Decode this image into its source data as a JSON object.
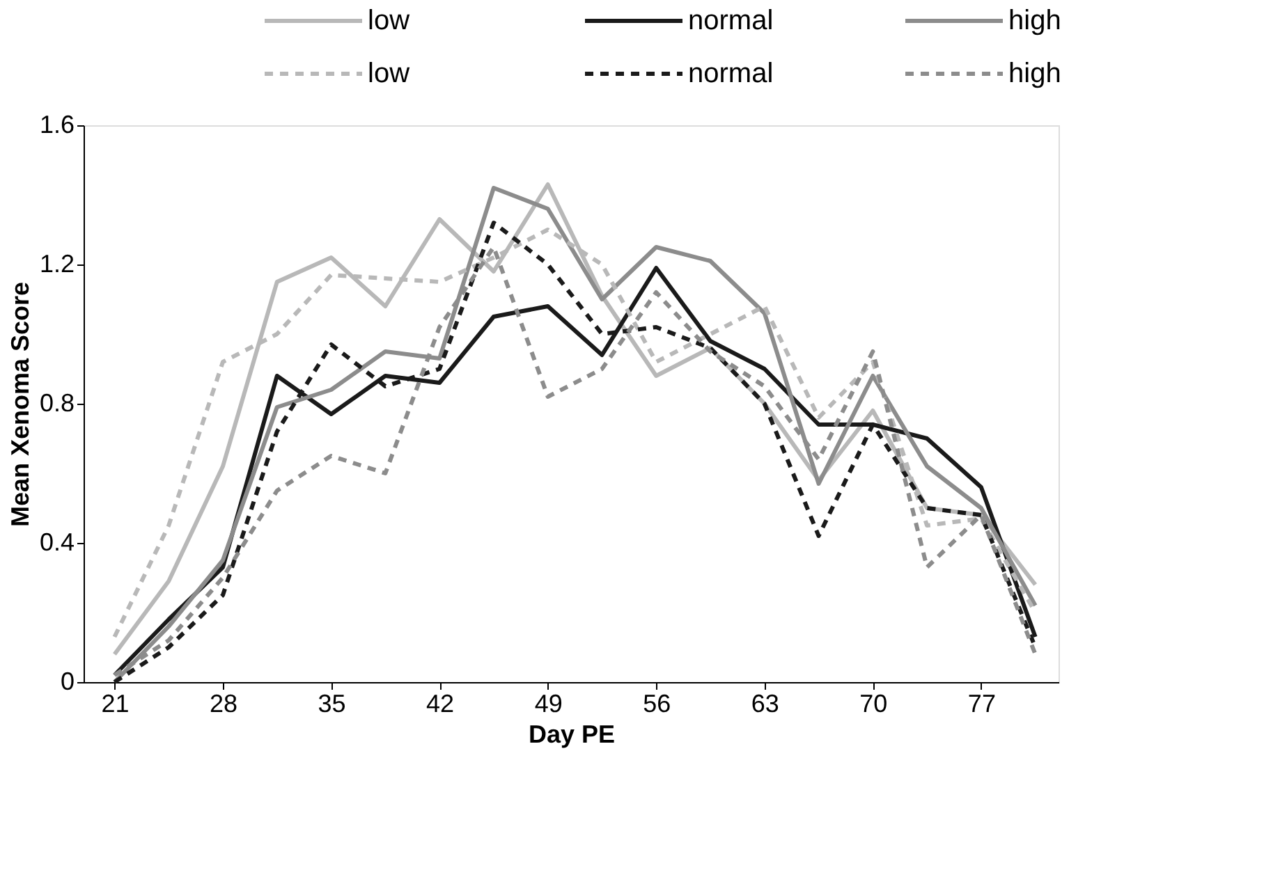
{
  "chart_data": {
    "type": "line",
    "xlabel": "Day PE",
    "ylabel": "Mean Xenoma Score",
    "x": [
      21,
      24.5,
      28,
      31.5,
      35,
      38.5,
      42,
      45.5,
      49,
      52.5,
      56,
      59.5,
      63,
      66.5,
      70,
      73.5,
      77,
      80.5
    ],
    "xlim": [
      19,
      82
    ],
    "xticks": [
      21,
      28,
      35,
      42,
      49,
      56,
      63,
      70,
      77
    ],
    "ylim": [
      0,
      1.6
    ],
    "yticks": [
      0,
      0.4,
      0.8,
      1.2,
      1.6
    ],
    "grid": false,
    "legend": "top",
    "marker": "none",
    "series": [
      {
        "name": "low",
        "color": "#b8b8b8",
        "line_style": "solid",
        "values": [
          0.08,
          0.29,
          0.62,
          1.15,
          1.22,
          1.08,
          1.33,
          1.18,
          1.43,
          1.11,
          0.88,
          0.96,
          0.8,
          0.58,
          0.78,
          0.5,
          0.48,
          0.28
        ]
      },
      {
        "name": "normal",
        "color": "#1a1a1a",
        "line_style": "solid",
        "values": [
          0.02,
          0.18,
          0.33,
          0.88,
          0.77,
          0.88,
          0.86,
          1.05,
          1.08,
          0.94,
          1.19,
          0.98,
          0.9,
          0.74,
          0.74,
          0.7,
          0.56,
          0.13
        ]
      },
      {
        "name": "high",
        "color": "#8c8c8c",
        "line_style": "solid",
        "values": [
          0.0,
          0.16,
          0.35,
          0.79,
          0.84,
          0.95,
          0.93,
          1.42,
          1.36,
          1.1,
          1.25,
          1.21,
          1.06,
          0.57,
          0.88,
          0.62,
          0.5,
          0.22
        ]
      },
      {
        "name": "low",
        "color": "#b8b8b8",
        "line_style": "dashed",
        "values": [
          0.13,
          0.45,
          0.92,
          1.0,
          1.17,
          1.16,
          1.15,
          1.22,
          1.3,
          1.2,
          0.92,
          1.0,
          1.08,
          0.76,
          0.92,
          0.45,
          0.47,
          0.2
        ]
      },
      {
        "name": "normal",
        "color": "#1a1a1a",
        "line_style": "dashed",
        "values": [
          0.0,
          0.1,
          0.25,
          0.72,
          0.97,
          0.85,
          0.9,
          1.32,
          1.2,
          1.0,
          1.02,
          0.96,
          0.8,
          0.42,
          0.74,
          0.5,
          0.48,
          0.1
        ]
      },
      {
        "name": "high",
        "color": "#8c8c8c",
        "line_style": "dashed",
        "values": [
          0.02,
          0.12,
          0.3,
          0.55,
          0.65,
          0.6,
          1.02,
          1.25,
          0.82,
          0.9,
          1.12,
          0.95,
          0.85,
          0.64,
          0.95,
          0.33,
          0.48,
          0.08
        ]
      }
    ]
  }
}
